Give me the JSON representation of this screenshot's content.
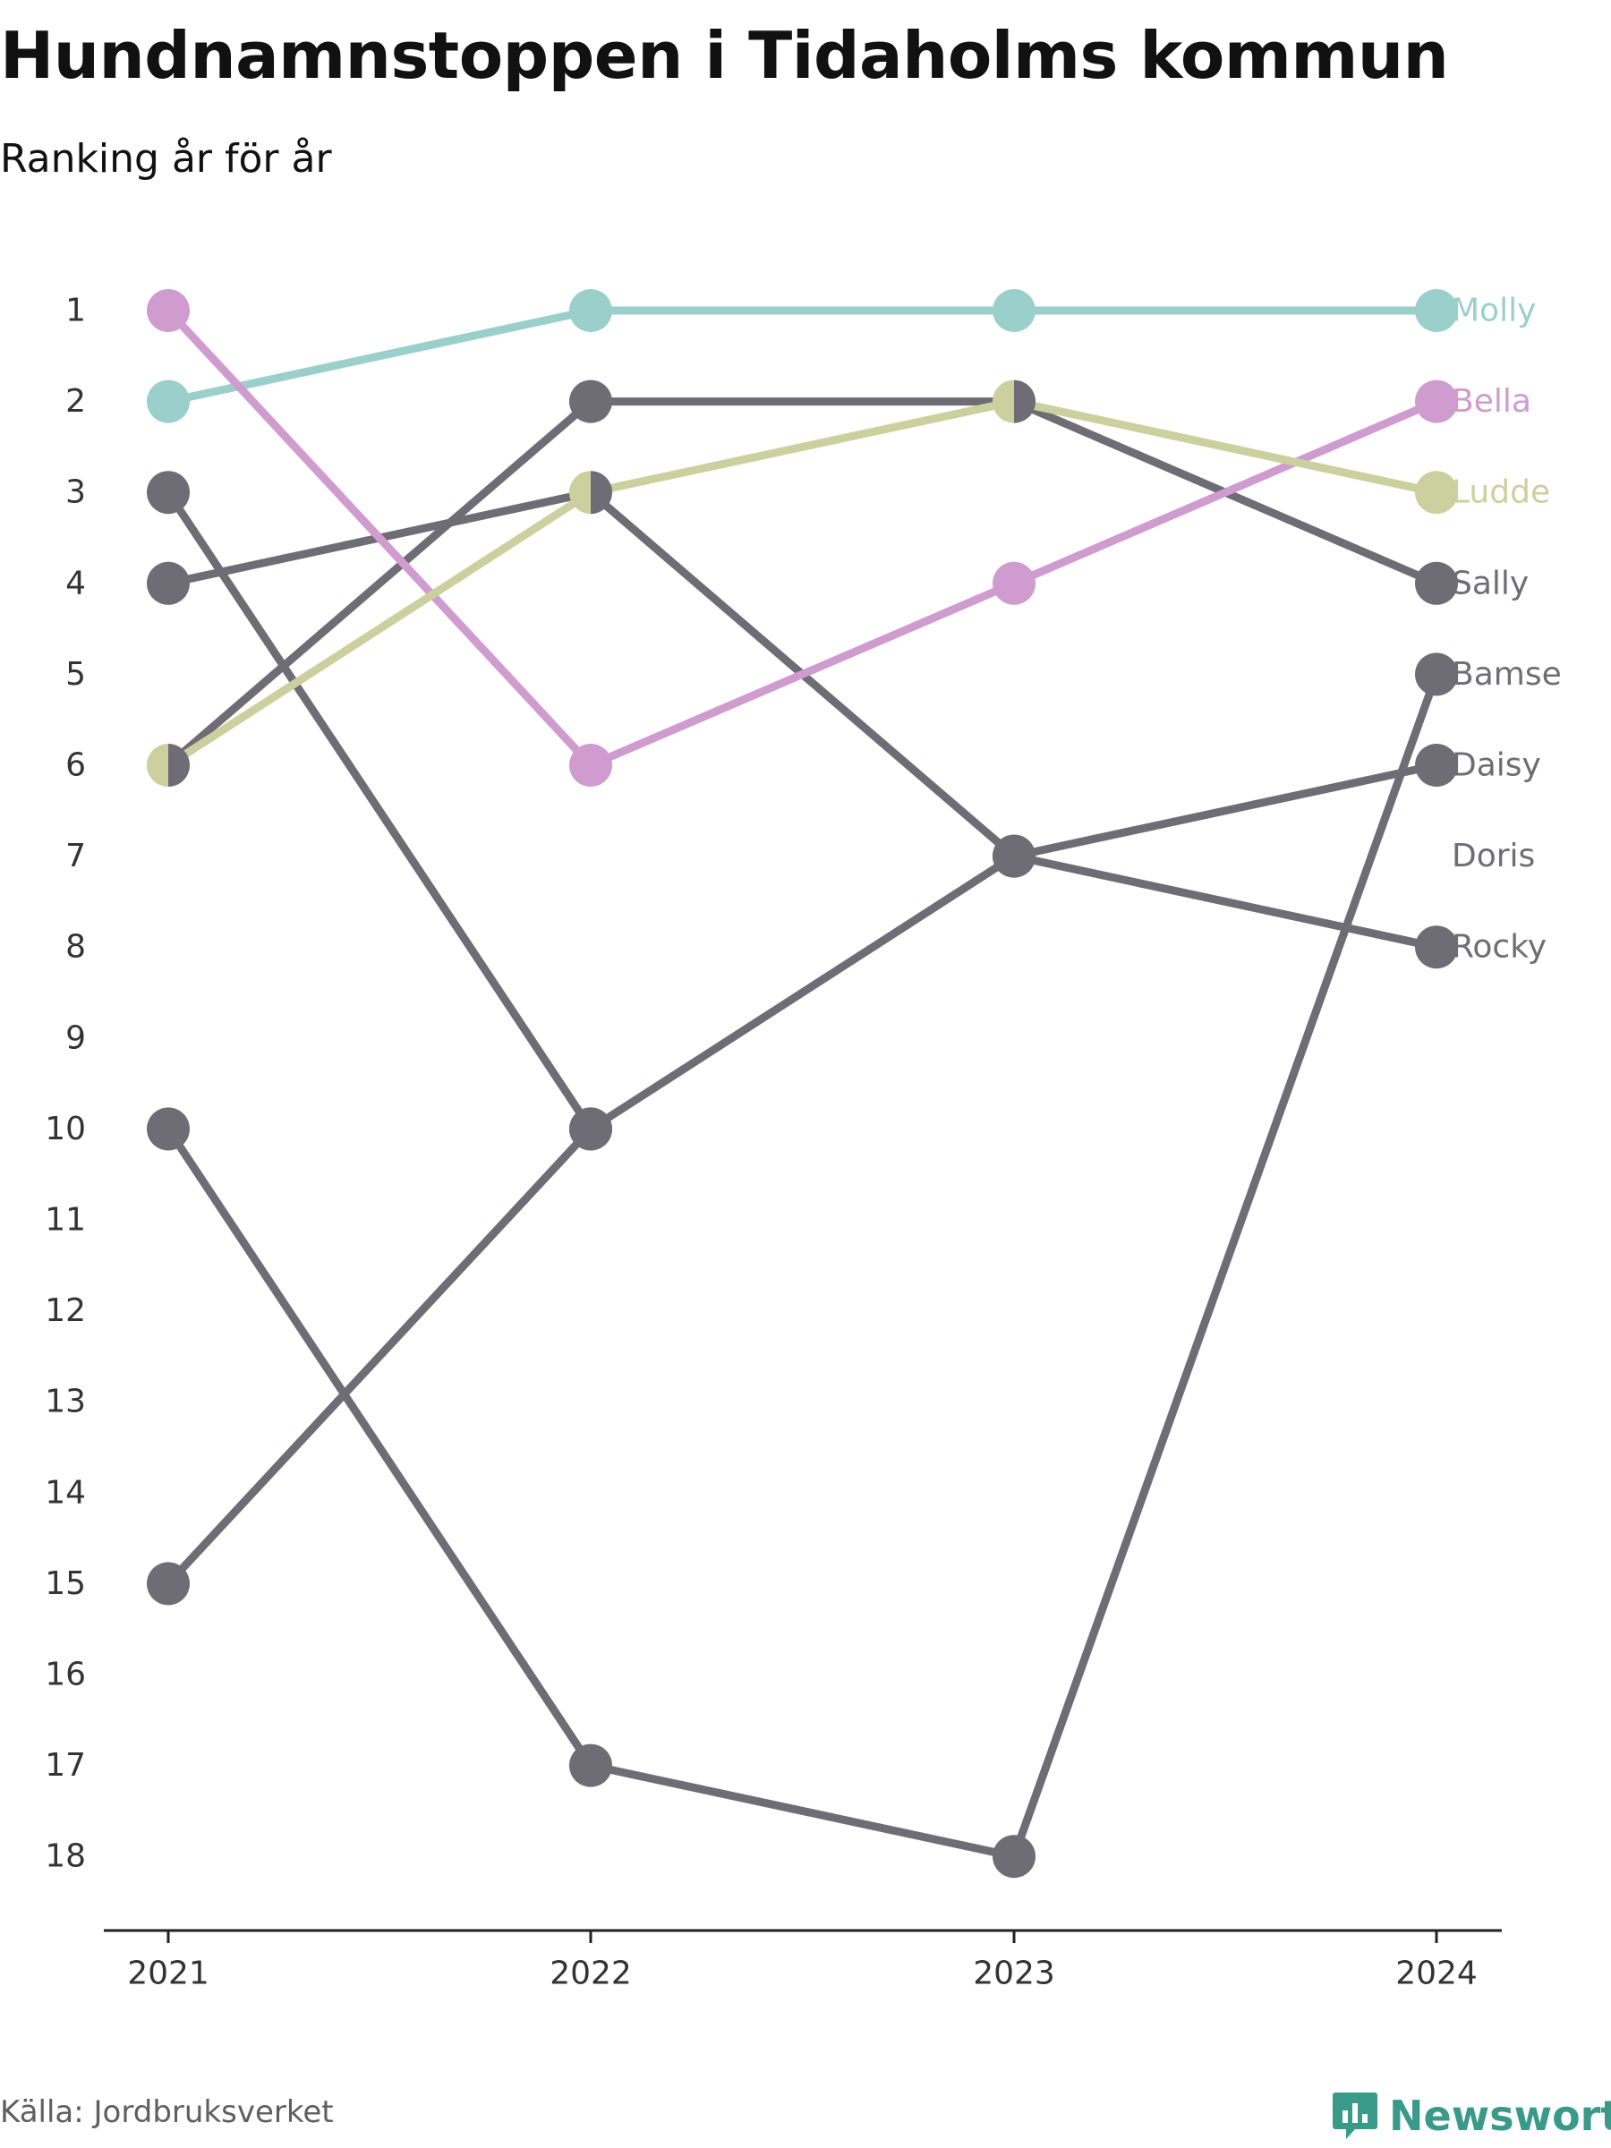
{
  "header": {
    "title": "Hundnamnstoppen i Tidaholms kommun",
    "subtitle": "Ranking år för år"
  },
  "footer": {
    "source": "Källa: Jordbruksverket",
    "brand": "Newsworthy"
  },
  "chart_data": {
    "type": "line",
    "subtype": "bump",
    "x": [
      "2021",
      "2022",
      "2023",
      "2024"
    ],
    "y_ticks": [
      "1",
      "2",
      "3",
      "4",
      "5",
      "6",
      "7",
      "8",
      "9",
      "10",
      "11",
      "12",
      "13",
      "14",
      "15",
      "16",
      "17",
      "18"
    ],
    "ylim": [
      1,
      18
    ],
    "y_reversed": true,
    "grid": false,
    "legend": "labels at right end",
    "series": [
      {
        "name": "Molly",
        "color": "#9acfcc",
        "values": [
          2,
          1,
          1,
          1
        ]
      },
      {
        "name": "Bella",
        "color": "#d09ccf",
        "values": [
          1,
          6,
          4,
          2
        ]
      },
      {
        "name": "Ludde",
        "color": "#cccf9e",
        "values": [
          6,
          3,
          2,
          3
        ]
      },
      {
        "name": "Sally",
        "color": "#6e6d75",
        "values": [
          6,
          2,
          2,
          4
        ]
      },
      {
        "name": "Bamse",
        "color": "#6e6d75",
        "values": [
          10,
          17,
          18,
          5
        ]
      },
      {
        "name": "Daisy",
        "color": "#6e6d75",
        "values": [
          15,
          10,
          7,
          6
        ]
      },
      {
        "name": "Doris",
        "color": "#6e6d75",
        "values": [
          4,
          3,
          7,
          8
        ]
      },
      {
        "name": "Rocky",
        "color": "#6e6d75",
        "values": [
          3,
          10,
          null,
          null
        ]
      }
    ]
  }
}
